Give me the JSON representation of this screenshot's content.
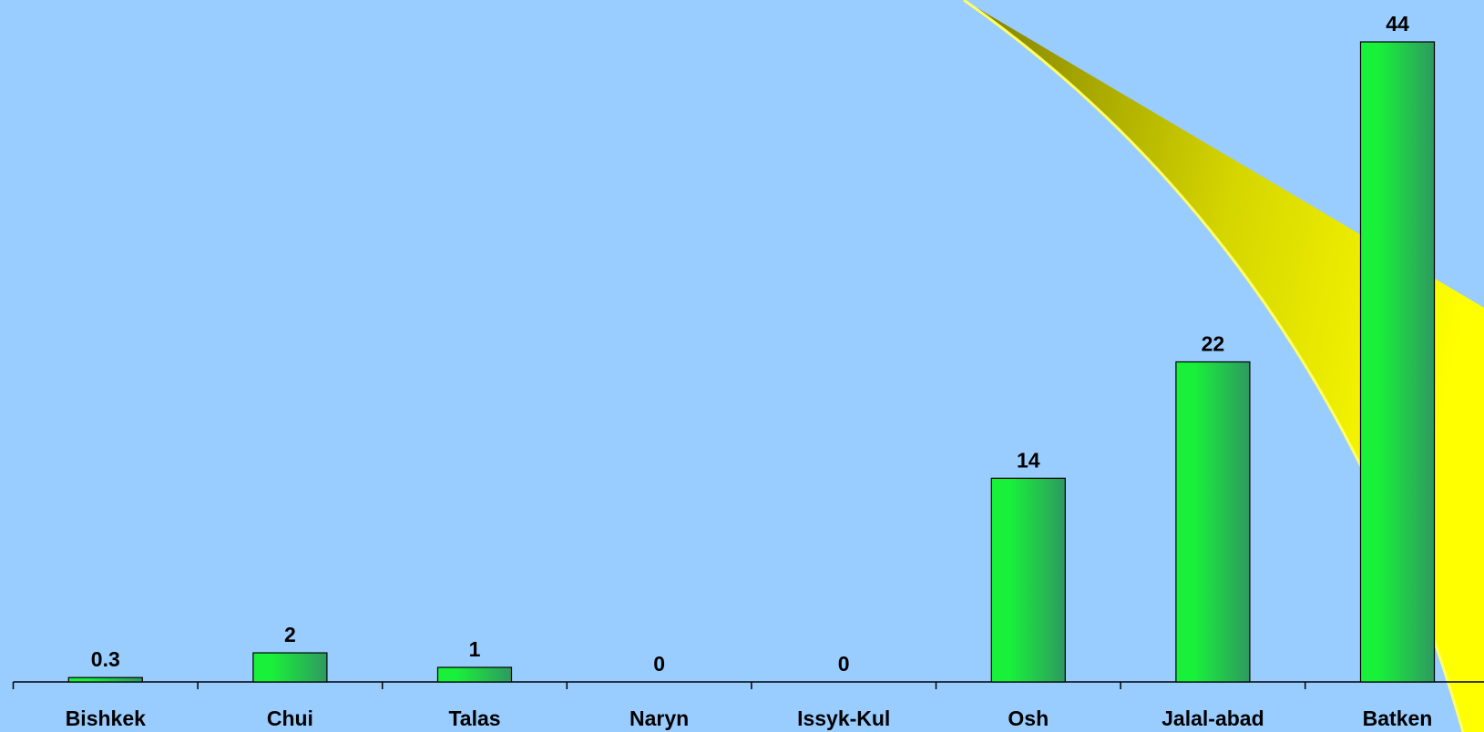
{
  "chart_data": {
    "type": "bar",
    "categories": [
      "Bishkek",
      "Chui",
      "Talas",
      "Naryn",
      "Issyk-Kul",
      "Osh",
      "Jalal-abad",
      "Batken"
    ],
    "values": [
      0.3,
      2,
      1,
      0,
      0,
      14,
      22,
      44
    ],
    "color": "#19f03a"
  }
}
